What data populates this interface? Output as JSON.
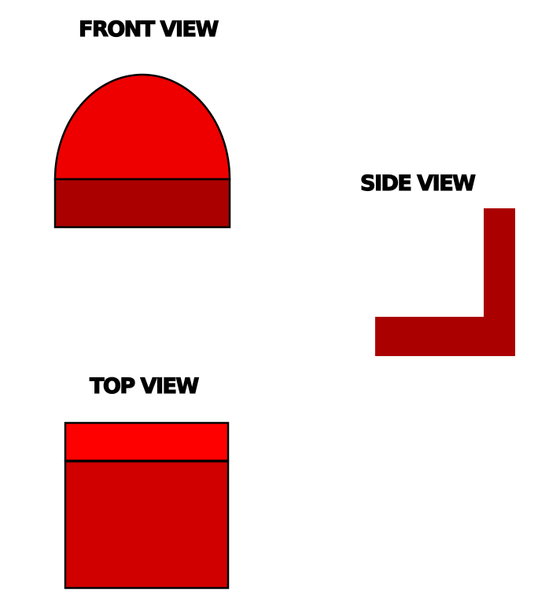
{
  "labels": {
    "front": "FRONT VIEW",
    "side": "SIDE VIEW",
    "top": "TOP VIEW"
  },
  "colors": {
    "front_dome": "#ee0000",
    "front_base": "#aa0000",
    "side_l_shape": "#aa0000",
    "top_strip": "#ff0000",
    "top_body": "#d00000",
    "outline": "#000000",
    "label_text": "#000000"
  }
}
